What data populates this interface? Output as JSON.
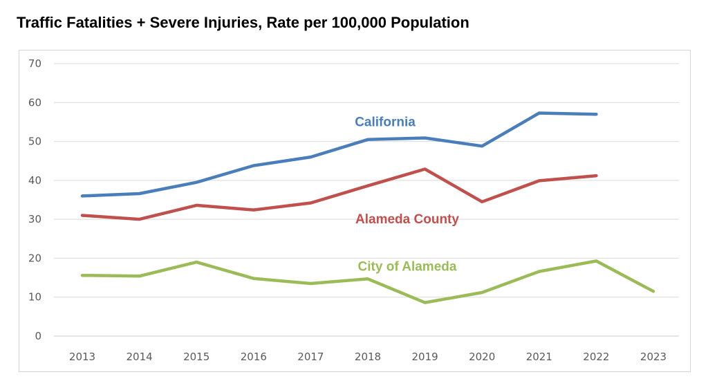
{
  "chart_data": {
    "type": "line",
    "title": "Traffic Fatalities + Severe Injuries, Rate per 100,000 Population",
    "xlabel": "",
    "ylabel": "",
    "categories": [
      "2013",
      "2014",
      "2015",
      "2016",
      "2017",
      "2018",
      "2019",
      "2020",
      "2021",
      "2022",
      "2023"
    ],
    "yticks": [
      "0",
      "10",
      "20",
      "30",
      "40",
      "50",
      "60",
      "70"
    ],
    "ylim": [
      0,
      70
    ],
    "grid": true,
    "series": [
      {
        "name": "California",
        "color": "#4a7ebb",
        "values": [
          36,
          36.6,
          39.5,
          43.8,
          46,
          50.5,
          50.9,
          48.8,
          57.3,
          57,
          null
        ]
      },
      {
        "name": "Alameda County",
        "color": "#c0504d",
        "values": [
          31,
          30,
          33.6,
          32.4,
          34.2,
          38.6,
          42.9,
          34.5,
          39.9,
          41.2,
          null
        ]
      },
      {
        "name": "City of Alameda",
        "color": "#9bbb59",
        "values": [
          15.6,
          15.4,
          19,
          14.8,
          13.5,
          14.7,
          8.6,
          11.2,
          16.6,
          19.3,
          11.5
        ]
      }
    ]
  }
}
